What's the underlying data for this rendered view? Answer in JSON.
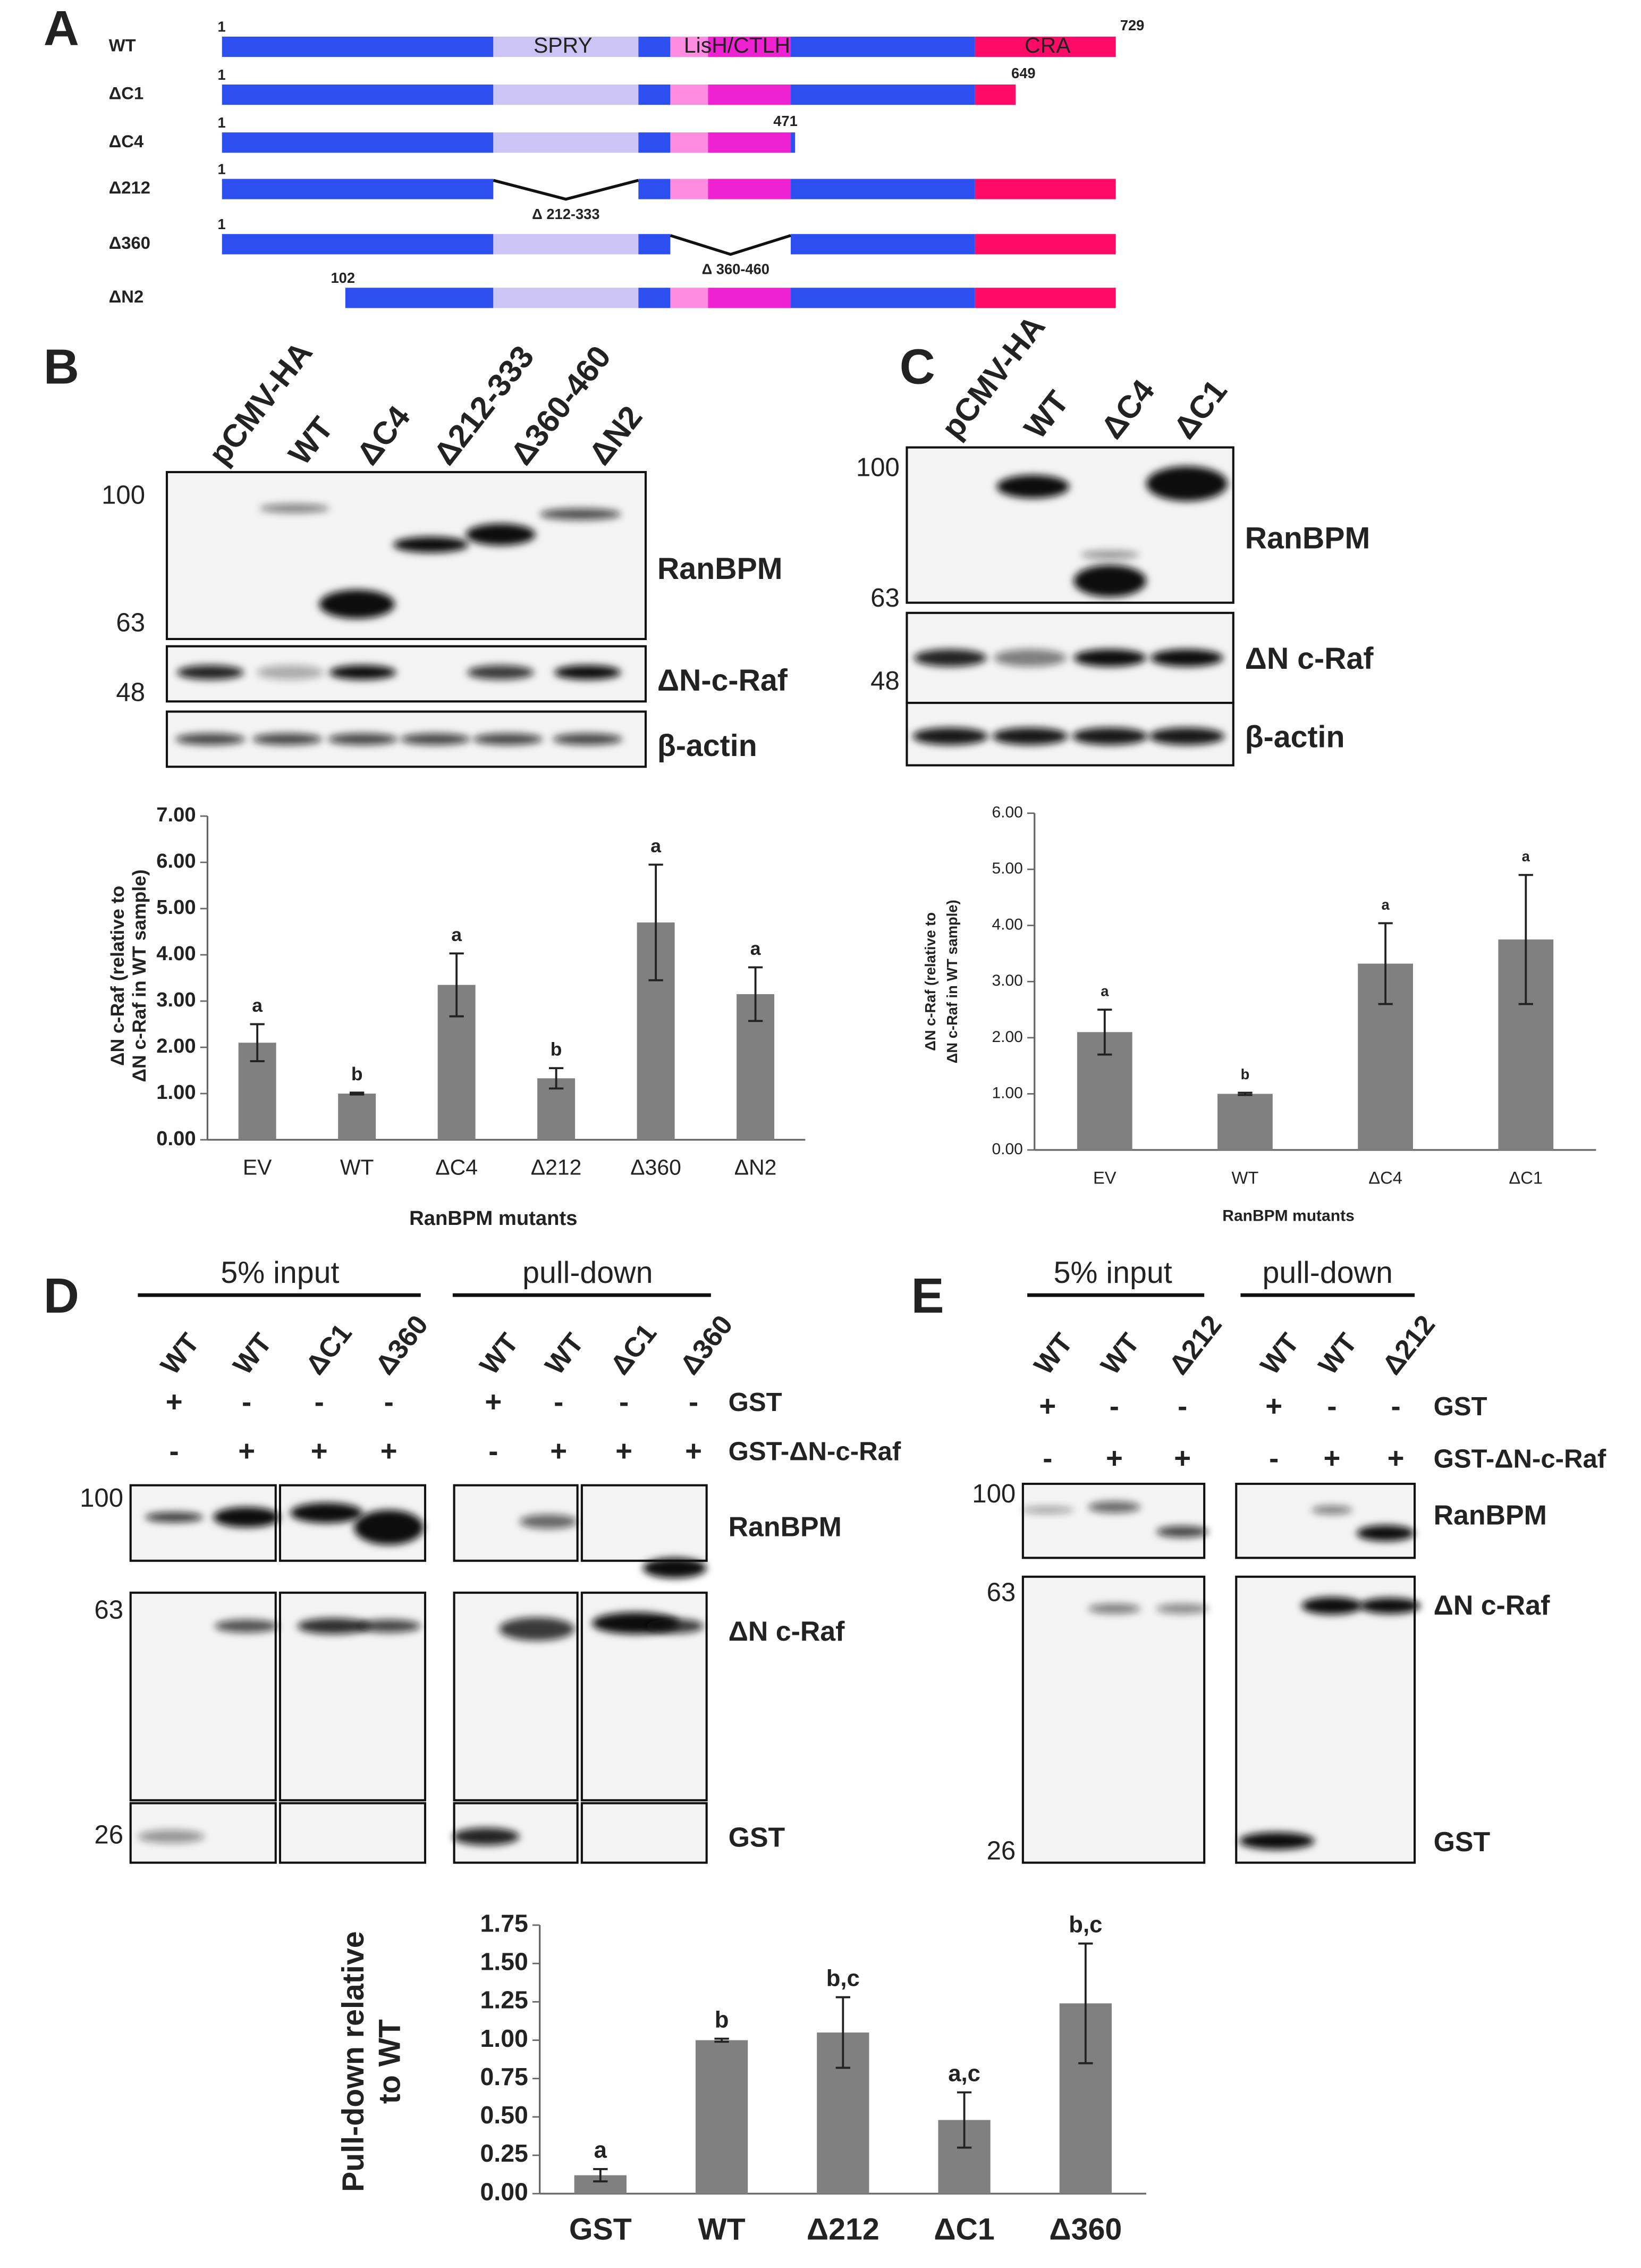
{
  "panel_labels": [
    "A",
    "B",
    "C",
    "D",
    "E"
  ],
  "diagram": {
    "rows": [
      {
        "name": "WT",
        "start": "1",
        "end": "729"
      },
      {
        "name": "ΔC1",
        "start": "1",
        "end": "649"
      },
      {
        "name": "ΔC4",
        "start": "1",
        "end": "471"
      },
      {
        "name": "Δ212",
        "start": "1"
      },
      {
        "name": "Δ360",
        "start": "1"
      },
      {
        "name": "ΔN2",
        "start": "102"
      }
    ],
    "domains": [
      "SPRY",
      "LisH/CTLH",
      "CRA"
    ],
    "deletions": [
      "Δ 212-333",
      "Δ 360-460"
    ]
  },
  "blot_b": {
    "lanes": [
      "pCMV-HA",
      "WT",
      "ΔC4",
      "Δ212-333",
      "Δ360-460",
      "ΔN2"
    ],
    "markers": [
      "100",
      "63",
      "48"
    ],
    "proteins": [
      "RanBPM",
      "ΔN-c-Raf",
      "β-actin"
    ]
  },
  "blot_c": {
    "lanes": [
      "pCMV-HA",
      "WT",
      "ΔC4",
      "ΔC1"
    ],
    "markers": [
      "100",
      "63",
      "48"
    ],
    "proteins": [
      "RanBPM",
      "ΔN c-Raf",
      "β-actin"
    ]
  },
  "blot_d": {
    "groups": [
      "5% input",
      "pull-down"
    ],
    "lanes": [
      "WT",
      "WT",
      "ΔC1",
      "Δ360",
      "WT",
      "WT",
      "ΔC1",
      "Δ360"
    ],
    "gst": [
      "+",
      "-",
      "-",
      "-",
      "+",
      "-",
      "-",
      "-"
    ],
    "gst_raf": [
      "-",
      "+",
      "+",
      "+",
      "-",
      "+",
      "+",
      "+"
    ],
    "row_labels": [
      "GST",
      "GST-ΔN-c-Raf"
    ],
    "markers": [
      "100",
      "63",
      "26"
    ],
    "proteins": [
      "RanBPM",
      "ΔN c-Raf",
      "GST"
    ]
  },
  "blot_e": {
    "groups": [
      "5% input",
      "pull-down"
    ],
    "lanes": [
      "WT",
      "WT",
      "Δ212",
      "WT",
      "WT",
      "Δ212"
    ],
    "gst": [
      "+",
      "-",
      "-",
      "+",
      "-",
      "-"
    ],
    "gst_raf": [
      "-",
      "+",
      "+",
      "-",
      "+",
      "+"
    ],
    "row_labels": [
      "GST",
      "GST-ΔN-c-Raf"
    ],
    "markers": [
      "100",
      "63",
      "26"
    ],
    "proteins": [
      "RanBPM",
      "ΔN c-Raf",
      "GST"
    ]
  },
  "chart_data": [
    {
      "type": "bar",
      "y_label": [
        "ΔN c-Raf (relative to",
        "ΔN c-Raf in WT sample)"
      ],
      "x_label": "RanBPM mutants",
      "categories": [
        "EV",
        "WT",
        "ΔC4",
        "Δ212",
        "Δ360",
        "ΔN2"
      ],
      "values": [
        2.1,
        1.0,
        3.35,
        1.33,
        4.7,
        3.15
      ],
      "errors": [
        0.4,
        0.02,
        0.68,
        0.22,
        1.25,
        0.58
      ],
      "annotations": [
        "a",
        "b",
        "a",
        "b",
        "a",
        "a"
      ],
      "color": "#808080",
      "ylim": [
        0,
        7
      ],
      "yticks": [
        {
          "value": 0,
          "label": "0.00"
        },
        {
          "value": 1,
          "label": "1.00"
        },
        {
          "value": 2,
          "label": "2.00"
        },
        {
          "value": 3,
          "label": "3.00"
        },
        {
          "value": 4,
          "label": "4.00"
        },
        {
          "value": 5,
          "label": "5.00"
        },
        {
          "value": 6,
          "label": "6.00"
        },
        {
          "value": 7,
          "label": "7.00"
        }
      ]
    },
    {
      "type": "bar",
      "y_label": [
        "ΔN c-Raf (relative to",
        "ΔN c-Raf in WT sample)"
      ],
      "x_label": "RanBPM mutants",
      "categories": [
        "EV",
        "WT",
        "ΔC4",
        "ΔC1"
      ],
      "values": [
        2.1,
        1.0,
        3.32,
        3.75
      ],
      "errors": [
        0.4,
        0.02,
        0.72,
        1.15
      ],
      "annotations": [
        "a",
        "b",
        "a",
        "a"
      ],
      "color": "#808080",
      "ylim": [
        0,
        6
      ],
      "yticks": [
        {
          "value": 0,
          "label": "0.00"
        },
        {
          "value": 1,
          "label": "1.00"
        },
        {
          "value": 2,
          "label": "2.00"
        },
        {
          "value": 3,
          "label": "3.00"
        },
        {
          "value": 4,
          "label": "4.00"
        },
        {
          "value": 5,
          "label": "5.00"
        },
        {
          "value": 6,
          "label": "6.00"
        }
      ]
    },
    {
      "type": "bar",
      "y_label": [
        "Pull-down relative",
        "to WT"
      ],
      "categories": [
        "GST",
        "WT",
        "Δ212",
        "ΔC1",
        "Δ360"
      ],
      "values": [
        0.12,
        1.0,
        1.05,
        0.48,
        1.24
      ],
      "errors": [
        0.04,
        0.01,
        0.23,
        0.18,
        0.39
      ],
      "annotations": [
        "a",
        "b",
        "b,c",
        "a,c",
        "b,c"
      ],
      "color": "#808080",
      "ylim": [
        0,
        1.75
      ],
      "yticks": [
        {
          "value": 0,
          "label": "0.00"
        },
        {
          "value": 0.25,
          "label": "0.25"
        },
        {
          "value": 0.5,
          "label": "0.50"
        },
        {
          "value": 0.75,
          "label": "0.75"
        },
        {
          "value": 1,
          "label": "1.00"
        },
        {
          "value": 1.25,
          "label": "1.25"
        },
        {
          "value": 1.5,
          "label": "1.50"
        },
        {
          "value": 1.75,
          "label": "1.75"
        }
      ]
    }
  ]
}
